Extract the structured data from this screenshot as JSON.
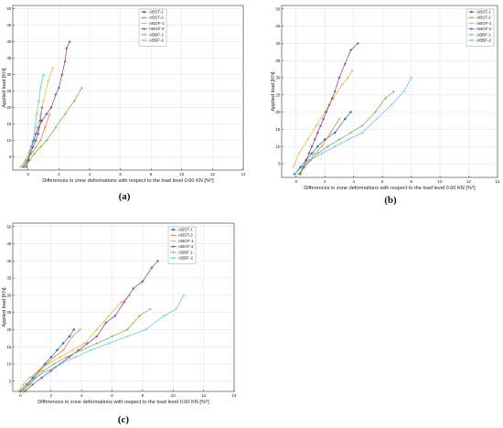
{
  "legend_labels": [
    "ABST-1",
    "ABST-2",
    "ABGF-1",
    "ABGF-2",
    "ABBF-1",
    "ABBF-2"
  ],
  "series_colors": [
    "#1f77b4",
    "#e8772e",
    "#e8b52c",
    "#7e3a91",
    "#77ab3d",
    "#4fc3e8"
  ],
  "chart_data": [
    {
      "type": "line",
      "caption": "(a)",
      "xlabel": "Differences in zone deformations with respect to the load level 0.00 KN [%⁰]",
      "ylabel": "Applied load [KN]",
      "xlim": [
        -1,
        14
      ],
      "ylim": [
        1,
        51
      ],
      "xticks": [
        0,
        2,
        4,
        6,
        8,
        10,
        12,
        14
      ],
      "yticks": [
        5,
        10,
        15,
        20,
        25,
        30,
        35,
        40,
        45,
        50
      ],
      "grid": true,
      "legend_position": "top-right",
      "series": [
        {
          "name": "ABST-1",
          "x": [
            -0.3,
            0.0,
            0.15,
            0.3,
            0.5,
            0.65,
            0.8,
            0.9
          ],
          "y": [
            2,
            4,
            6,
            8,
            10,
            12,
            16,
            20
          ]
        },
        {
          "name": "ABST-2",
          "x": [
            -0.4,
            -0.1,
            0.2,
            0.5,
            0.8,
            1.1,
            1.4
          ],
          "y": [
            2,
            4,
            6,
            8,
            10,
            14,
            18
          ]
        },
        {
          "name": "ABGF-1",
          "x": [
            -0.5,
            -0.2,
            0.1,
            0.4,
            0.6,
            0.8,
            1.0,
            1.3,
            1.6
          ],
          "y": [
            2,
            4,
            7,
            10,
            14,
            18,
            22,
            28,
            32
          ]
        },
        {
          "name": "ABGF-2",
          "x": [
            -0.1,
            0.0,
            0.1,
            0.2,
            0.35,
            0.5,
            0.7,
            0.9,
            1.2,
            1.5,
            1.8,
            2.0,
            2.2,
            2.4,
            2.5,
            2.7
          ],
          "y": [
            2,
            4,
            6,
            8,
            10,
            12,
            14,
            16,
            18,
            20,
            24,
            26,
            30,
            34,
            38,
            40
          ]
        },
        {
          "name": "ABBF-1",
          "x": [
            -0.2,
            0.1,
            0.4,
            0.8,
            1.2,
            1.8,
            2.4,
            3.0,
            3.5
          ],
          "y": [
            2,
            4,
            6,
            8,
            10,
            14,
            18,
            22,
            26
          ]
        },
        {
          "name": "ABBF-2",
          "x": [
            -0.3,
            -0.1,
            0.1,
            0.2,
            0.3,
            0.45,
            0.55,
            0.7,
            0.8,
            1.0
          ],
          "y": [
            2,
            4,
            6,
            8,
            10,
            14,
            18,
            22,
            26,
            30
          ]
        }
      ]
    },
    {
      "type": "line",
      "caption": "(b)",
      "xlabel": "Differences in zone deformations with respect to the load level 0.00 KN [%⁰]",
      "ylabel": "Applied load [KN]",
      "xlim": [
        -1,
        14
      ],
      "ylim": [
        1,
        51
      ],
      "xticks": [
        0,
        2,
        4,
        6,
        8,
        10,
        12,
        14
      ],
      "yticks": [
        5,
        10,
        15,
        20,
        25,
        30,
        35,
        40,
        45,
        50
      ],
      "grid": true,
      "legend_position": "top-right",
      "series": [
        {
          "name": "ABST-1",
          "x": [
            -0.1,
            0.3,
            0.7,
            1.1,
            1.5,
            2.0,
            2.7,
            3.4,
            3.8
          ],
          "y": [
            2,
            4,
            6,
            8,
            10,
            12,
            14,
            18,
            20
          ]
        },
        {
          "name": "ABST-2",
          "x": [
            0.2,
            0.5,
            0.9,
            1.3,
            1.8,
            2.4,
            3.0
          ],
          "y": [
            2,
            4,
            6,
            8,
            10,
            14,
            18
          ]
        },
        {
          "name": "ABGF-1",
          "x": [
            -0.2,
            0.2,
            0.8,
            1.4,
            2.0,
            2.6,
            3.2,
            3.6,
            3.9
          ],
          "y": [
            4,
            8,
            12,
            16,
            20,
            24,
            28,
            30,
            32
          ]
        },
        {
          "name": "ABGF-2",
          "x": [
            0.3,
            0.5,
            0.7,
            0.9,
            1.1,
            1.3,
            1.5,
            1.7,
            1.9,
            2.1,
            2.3,
            2.5,
            2.7,
            3.0,
            3.4,
            3.8,
            4.3
          ],
          "y": [
            2,
            4,
            6,
            8,
            10,
            12,
            14,
            16,
            18,
            20,
            22,
            24,
            26,
            30,
            34,
            38,
            40
          ]
        },
        {
          "name": "ABBF-1",
          "x": [
            0.2,
            0.6,
            1.0,
            1.5,
            2.2,
            3.0,
            3.8,
            4.6,
            5.5,
            6.2,
            6.8
          ],
          "y": [
            2,
            4,
            6,
            8,
            10,
            12,
            14,
            16,
            20,
            24,
            26
          ]
        },
        {
          "name": "ABBF-2",
          "x": [
            -0.1,
            0.4,
            1.0,
            1.8,
            2.7,
            3.6,
            4.6,
            5.6,
            6.6,
            7.5,
            8.0
          ],
          "y": [
            2,
            4,
            6,
            8,
            10,
            12,
            14,
            18,
            22,
            26,
            30
          ]
        }
      ]
    },
    {
      "type": "line",
      "caption": "(c)",
      "xlabel": "Differences in zone deformations with respect to the load level 0.00 KN [%⁰]",
      "ylabel": "Applied load [KN]",
      "xlim": [
        -0.5,
        14
      ],
      "ylim": [
        2,
        51
      ],
      "xticks": [
        0,
        2,
        4,
        6,
        8,
        10,
        12,
        14
      ],
      "yticks": [
        5,
        10,
        15,
        20,
        25,
        30,
        35,
        40,
        45,
        50
      ],
      "grid": true,
      "legend_position": "top-right",
      "series": [
        {
          "name": "ABST-1",
          "x": [
            0.0,
            0.4,
            0.8,
            1.2,
            1.6,
            2.0,
            2.4,
            2.8,
            3.2,
            3.5
          ],
          "y": [
            2,
            4,
            6,
            8,
            10,
            12,
            14,
            16,
            18,
            20
          ]
        },
        {
          "name": "ABST-2",
          "x": [
            0.1,
            0.5,
            0.9,
            1.3,
            1.7,
            2.2,
            2.8,
            3.4,
            3.9
          ],
          "y": [
            2,
            4,
            6,
            8,
            10,
            12,
            14,
            18,
            20
          ]
        },
        {
          "name": "ABGF-1",
          "x": [
            -0.2,
            0.2,
            0.6,
            1.2,
            1.8,
            2.6,
            3.4,
            4.2,
            5.0,
            5.8,
            6.6,
            7.2
          ],
          "y": [
            2,
            4,
            6,
            8,
            10,
            12,
            14,
            16,
            20,
            24,
            28,
            30
          ]
        },
        {
          "name": "ABGF-2",
          "x": [
            0.3,
            0.8,
            1.4,
            2.0,
            2.6,
            3.2,
            3.8,
            4.4,
            5.0,
            5.6,
            6.2,
            6.8,
            7.4,
            8.0,
            8.6,
            9.0
          ],
          "y": [
            2,
            4,
            6,
            8,
            10,
            12,
            14,
            16,
            18,
            22,
            24,
            28,
            32,
            34,
            38,
            40
          ]
        },
        {
          "name": "ABBF-1",
          "x": [
            0.2,
            0.6,
            1.0,
            1.5,
            2.2,
            3.0,
            4.0,
            5.0,
            6.0,
            7.0,
            7.8,
            8.5
          ],
          "y": [
            2,
            4,
            6,
            8,
            10,
            12,
            14,
            16,
            18,
            20,
            24,
            26
          ]
        },
        {
          "name": "ABBF-2",
          "x": [
            -0.1,
            0.4,
            1.0,
            1.8,
            2.6,
            3.6,
            4.6,
            5.8,
            7.0,
            8.2,
            9.4,
            10.2,
            10.7
          ],
          "y": [
            2,
            4,
            6,
            8,
            10,
            12,
            14,
            16,
            18,
            20,
            24,
            26,
            30
          ]
        }
      ]
    }
  ]
}
